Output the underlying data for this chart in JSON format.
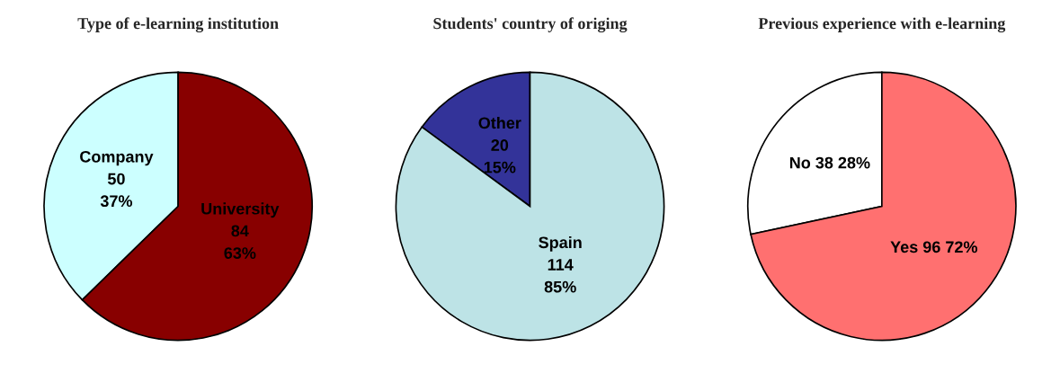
{
  "chart_data": [
    {
      "type": "pie",
      "title": "Type of e-learning institution",
      "categories": [
        "Company",
        "University"
      ],
      "values": [
        50,
        84
      ],
      "value_labels": [
        "\n50\n37%",
        "\n84\n63%"
      ],
      "colors": [
        "#ccffff",
        "#880000"
      ]
    },
    {
      "type": "pie",
      "title": "Students' country of origing",
      "categories": [
        "Other",
        "Spain"
      ],
      "values": [
        20,
        114
      ],
      "value_labels": [
        "\n20\n15%",
        "\n114\n85%"
      ],
      "colors": [
        "#333399",
        "#bde3e6"
      ]
    },
    {
      "type": "pie",
      "title": "Previous experience with e-learning",
      "categories": [
        "No",
        "Yes"
      ],
      "values": [
        38,
        96
      ],
      "value_labels": [
        " 38 28%",
        " 96 72%"
      ],
      "colors": [
        "#ffffff",
        "#ff7070"
      ]
    }
  ]
}
